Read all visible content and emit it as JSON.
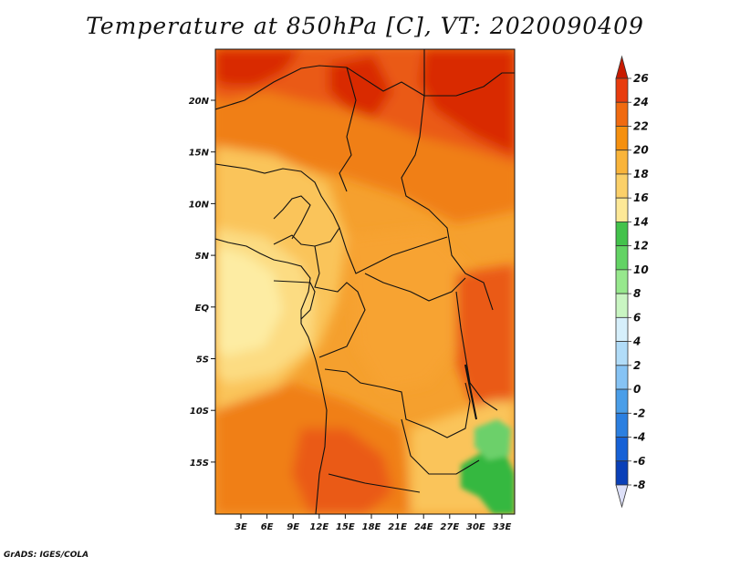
{
  "title": "Temperature at 850hPa [C], VT: 2020090409",
  "credit": "GrADS: IGES/COLA",
  "lat_ticks": [
    "20N",
    "15N",
    "10N",
    "5N",
    "EQ",
    "5S",
    "10S",
    "15S"
  ],
  "lon_ticks": [
    "3E",
    "6E",
    "9E",
    "12E",
    "15E",
    "18E",
    "21E",
    "24E",
    "27E",
    "30E",
    "33E"
  ],
  "colorbar": {
    "labels": [
      "26",
      "24",
      "22",
      "20",
      "18",
      "16",
      "14",
      "12",
      "10",
      "8",
      "6",
      "4",
      "2",
      "0",
      "-2",
      "-4",
      "-6",
      "-8"
    ],
    "colors": [
      "#d42000",
      "#e83c0e",
      "#f06a10",
      "#f5900f",
      "#f9b43a",
      "#fbd069",
      "#fde897",
      "#43c24b",
      "#63d364",
      "#97e88d",
      "#c9f5c2",
      "#d6effb",
      "#b1dcf8",
      "#86c3f4",
      "#4a9ee8",
      "#2b7fe0",
      "#1661d6",
      "#0a40b8",
      "#06228a",
      "#021063"
    ],
    "top_arrow_color": "#c81a00",
    "bottom_arrow_color": "#dde0f8"
  },
  "map_colors": {
    "very_hot": "#d92b05",
    "hot": "#ea5a12",
    "warm": "#f07f18",
    "mild": "#f7a331",
    "cool": "#fac45a",
    "cooler": "#fcdc82",
    "cold": "#fdeca3",
    "green": "#36b840",
    "light_green": "#6cd06a"
  }
}
